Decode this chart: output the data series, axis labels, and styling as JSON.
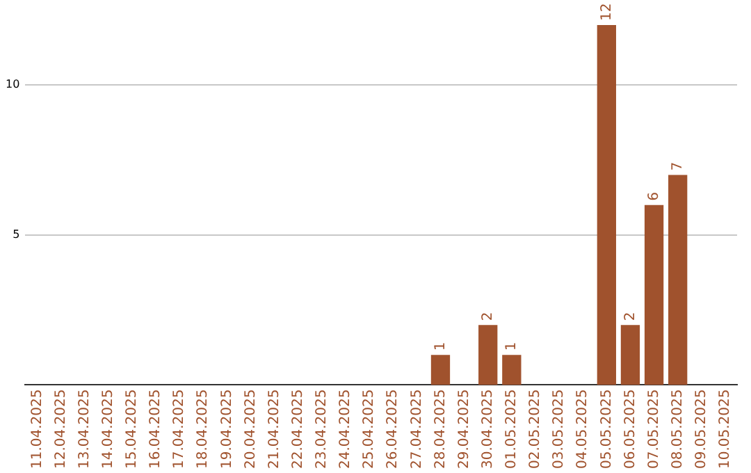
{
  "chart_data": {
    "type": "bar",
    "categories": [
      "11.04.2025",
      "12.04.2025",
      "13.04.2025",
      "14.04.2025",
      "15.04.2025",
      "16.04.2025",
      "17.04.2025",
      "18.04.2025",
      "19.04.2025",
      "20.04.2025",
      "21.04.2025",
      "22.04.2025",
      "23.04.2025",
      "24.04.2025",
      "25.04.2025",
      "26.04.2025",
      "27.04.2025",
      "28.04.2025",
      "29.04.2025",
      "30.04.2025",
      "01.05.2025",
      "02.05.2025",
      "03.05.2025",
      "04.05.2025",
      "05.05.2025",
      "06.05.2025",
      "07.05.2025",
      "08.05.2025",
      "09.05.2025",
      "10.05.2025"
    ],
    "values": [
      0,
      0,
      0,
      0,
      0,
      0,
      0,
      0,
      0,
      0,
      0,
      0,
      0,
      0,
      0,
      0,
      0,
      1,
      0,
      2,
      1,
      0,
      0,
      0,
      12,
      2,
      6,
      7,
      0,
      0
    ],
    "value_labels": [
      null,
      null,
      null,
      null,
      null,
      null,
      null,
      null,
      null,
      null,
      null,
      null,
      null,
      null,
      null,
      null,
      null,
      "1",
      null,
      "2",
      "1",
      null,
      null,
      null,
      "12",
      "2",
      "6",
      "7",
      null,
      null
    ],
    "color": "#a0522d",
    "ylim": [
      0,
      12
    ],
    "yticks": [
      5,
      10
    ],
    "grid": "y"
  }
}
